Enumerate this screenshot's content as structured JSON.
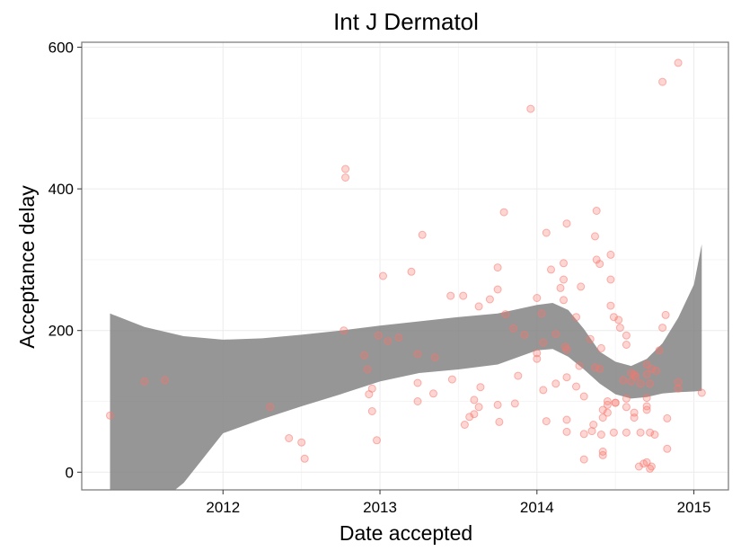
{
  "chart_data": {
    "type": "scatter",
    "title": "Int J Dermatol",
    "xlabel": "Date accepted",
    "ylabel": "Acceptance delay",
    "xlim": [
      2011.1,
      2015.22
    ],
    "ylim": [
      -25,
      607
    ],
    "x_ticks": [
      {
        "value": 2012,
        "label": "2012"
      },
      {
        "value": 2013,
        "label": "2013"
      },
      {
        "value": 2014,
        "label": "2014"
      },
      {
        "value": 2015,
        "label": "2015"
      }
    ],
    "y_ticks": [
      {
        "value": 0,
        "label": "0"
      },
      {
        "value": 200,
        "label": "200"
      },
      {
        "value": 400,
        "label": "400"
      },
      {
        "value": 600,
        "label": "600"
      }
    ],
    "grid": true,
    "colors": {
      "points": "#f8766d",
      "band": "#7f7f7f",
      "grid": "#ebebeb",
      "panel_border": "#7f7f7f"
    },
    "confidence_band": {
      "x": [
        2011.28,
        2011.5,
        2011.75,
        2012.0,
        2012.25,
        2012.5,
        2012.75,
        2013.0,
        2013.25,
        2013.5,
        2013.75,
        2014.0,
        2014.1,
        2014.2,
        2014.3,
        2014.4,
        2014.5,
        2014.6,
        2014.7,
        2014.8,
        2014.9,
        2015.0,
        2015.05
      ],
      "upper": [
        224,
        205,
        192,
        187,
        189,
        194,
        200,
        207,
        213,
        219,
        224,
        236,
        239,
        229,
        202,
        170,
        156,
        150,
        160,
        182,
        218,
        265,
        322
      ],
      "lower": [
        -100,
        -60,
        -15,
        55,
        75,
        93,
        110,
        128,
        140,
        145,
        152,
        172,
        174,
        163,
        145,
        125,
        110,
        104,
        106,
        111,
        113,
        114,
        115
      ]
    },
    "points": [
      [
        2011.28,
        80
      ],
      [
        2011.5,
        128
      ],
      [
        2011.63,
        130
      ],
      [
        2012.3,
        92
      ],
      [
        2012.42,
        48
      ],
      [
        2012.5,
        42
      ],
      [
        2012.52,
        19
      ],
      [
        2012.77,
        200
      ],
      [
        2012.78,
        428
      ],
      [
        2012.78,
        416
      ],
      [
        2012.9,
        165
      ],
      [
        2012.92,
        145
      ],
      [
        2012.93,
        110
      ],
      [
        2012.95,
        118
      ],
      [
        2012.95,
        86
      ],
      [
        2012.98,
        45
      ],
      [
        2012.99,
        193
      ],
      [
        2013.02,
        277
      ],
      [
        2013.05,
        185
      ],
      [
        2013.12,
        190
      ],
      [
        2013.2,
        283
      ],
      [
        2013.24,
        167
      ],
      [
        2013.24,
        126
      ],
      [
        2013.24,
        100
      ],
      [
        2013.27,
        335
      ],
      [
        2013.34,
        111
      ],
      [
        2013.35,
        162
      ],
      [
        2013.45,
        249
      ],
      [
        2013.46,
        131
      ],
      [
        2013.53,
        249
      ],
      [
        2013.54,
        67
      ],
      [
        2013.57,
        78
      ],
      [
        2013.6,
        82
      ],
      [
        2013.6,
        102
      ],
      [
        2013.63,
        234
      ],
      [
        2013.63,
        92
      ],
      [
        2013.64,
        120
      ],
      [
        2013.7,
        244
      ],
      [
        2013.75,
        258
      ],
      [
        2013.75,
        289
      ],
      [
        2013.75,
        95
      ],
      [
        2013.76,
        71
      ],
      [
        2013.79,
        367
      ],
      [
        2013.8,
        223
      ],
      [
        2013.85,
        203
      ],
      [
        2013.86,
        97
      ],
      [
        2013.88,
        136
      ],
      [
        2013.92,
        194
      ],
      [
        2013.96,
        513
      ],
      [
        2014.0,
        246
      ],
      [
        2014.0,
        168
      ],
      [
        2014.0,
        160
      ],
      [
        2014.03,
        224
      ],
      [
        2014.04,
        183
      ],
      [
        2014.04,
        116
      ],
      [
        2014.06,
        72
      ],
      [
        2014.06,
        338
      ],
      [
        2014.09,
        286
      ],
      [
        2014.12,
        125
      ],
      [
        2014.12,
        195
      ],
      [
        2014.15,
        260
      ],
      [
        2014.17,
        295
      ],
      [
        2014.17,
        272
      ],
      [
        2014.17,
        243
      ],
      [
        2014.18,
        177
      ],
      [
        2014.19,
        351
      ],
      [
        2014.19,
        173
      ],
      [
        2014.19,
        134
      ],
      [
        2014.19,
        74
      ],
      [
        2014.19,
        57
      ],
      [
        2014.25,
        219
      ],
      [
        2014.25,
        121
      ],
      [
        2014.27,
        150
      ],
      [
        2014.28,
        262
      ],
      [
        2014.3,
        107
      ],
      [
        2014.3,
        54
      ],
      [
        2014.3,
        18
      ],
      [
        2014.34,
        188
      ],
      [
        2014.35,
        58
      ],
      [
        2014.36,
        67
      ],
      [
        2014.37,
        148
      ],
      [
        2014.37,
        333
      ],
      [
        2014.38,
        300
      ],
      [
        2014.38,
        369
      ],
      [
        2014.4,
        294
      ],
      [
        2014.4,
        146
      ],
      [
        2014.41,
        175
      ],
      [
        2014.41,
        53
      ],
      [
        2014.42,
        88
      ],
      [
        2014.42,
        77
      ],
      [
        2014.42,
        29
      ],
      [
        2014.42,
        24
      ],
      [
        2014.45,
        95
      ],
      [
        2014.45,
        84
      ],
      [
        2014.45,
        100
      ],
      [
        2014.47,
        272
      ],
      [
        2014.47,
        235
      ],
      [
        2014.47,
        307
      ],
      [
        2014.49,
        219
      ],
      [
        2014.49,
        56
      ],
      [
        2014.5,
        98
      ],
      [
        2014.5,
        98
      ],
      [
        2014.52,
        215
      ],
      [
        2014.53,
        204
      ],
      [
        2014.55,
        130
      ],
      [
        2014.57,
        92
      ],
      [
        2014.57,
        104
      ],
      [
        2014.57,
        180
      ],
      [
        2014.57,
        193
      ],
      [
        2014.57,
        56
      ],
      [
        2014.6,
        140
      ],
      [
        2014.6,
        128
      ],
      [
        2014.62,
        138
      ],
      [
        2014.62,
        84
      ],
      [
        2014.62,
        77
      ],
      [
        2014.63,
        135
      ],
      [
        2014.65,
        8
      ],
      [
        2014.66,
        56
      ],
      [
        2014.66,
        125
      ],
      [
        2014.68,
        12
      ],
      [
        2014.7,
        138
      ],
      [
        2014.7,
        152
      ],
      [
        2014.7,
        105
      ],
      [
        2014.7,
        93
      ],
      [
        2014.7,
        88
      ],
      [
        2014.7,
        14
      ],
      [
        2014.72,
        125
      ],
      [
        2014.72,
        56
      ],
      [
        2014.72,
        5
      ],
      [
        2014.73,
        8
      ],
      [
        2014.73,
        146
      ],
      [
        2014.75,
        53
      ],
      [
        2014.76,
        143
      ],
      [
        2014.78,
        172
      ],
      [
        2014.8,
        551
      ],
      [
        2014.8,
        204
      ],
      [
        2014.82,
        222
      ],
      [
        2014.83,
        76
      ],
      [
        2014.83,
        33
      ],
      [
        2014.9,
        578
      ],
      [
        2014.9,
        127
      ],
      [
        2014.9,
        118
      ],
      [
        2015.05,
        112
      ]
    ]
  }
}
